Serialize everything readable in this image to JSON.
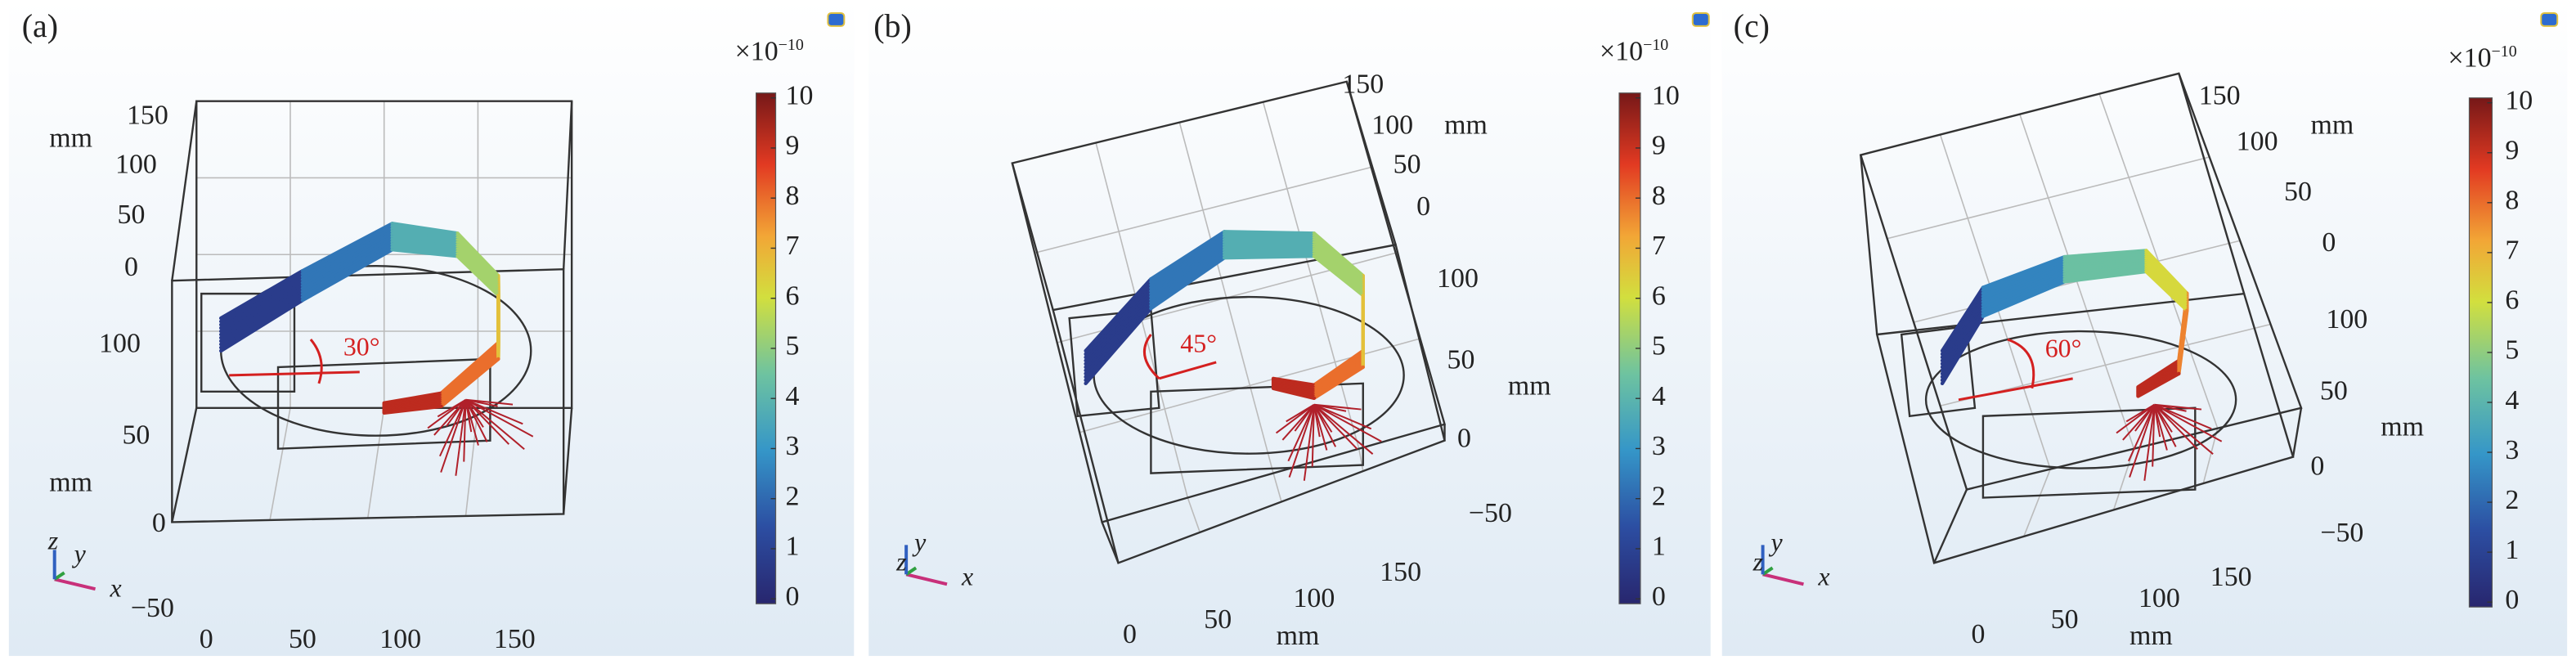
{
  "panels": [
    {
      "label": "(a)",
      "angle": "30°",
      "exponent": "×10",
      "power": "−10",
      "colorbar_ticks": [
        0,
        1,
        2,
        3,
        4,
        5,
        6,
        7,
        8,
        9,
        10
      ],
      "axis_labels": [
        "150",
        "100",
        "50",
        "0",
        "mm",
        "100",
        "50",
        "mm",
        "0",
        "−50",
        "0",
        "50",
        "100",
        "150"
      ],
      "triad": [
        "z",
        "y",
        "x"
      ]
    },
    {
      "label": "(b)",
      "angle": "45°",
      "exponent": "×10",
      "power": "−10",
      "colorbar_ticks": [
        0,
        1,
        2,
        3,
        4,
        5,
        6,
        7,
        8,
        9,
        10
      ],
      "axis_labels": [
        "150",
        "100",
        "50",
        "0",
        "mm",
        "100",
        "50",
        "mm",
        "0",
        "−50",
        "0",
        "50",
        "100",
        "150",
        "mm"
      ],
      "triad": [
        "y",
        "z",
        "x"
      ]
    },
    {
      "label": "(c)",
      "angle": "60°",
      "exponent": "×10",
      "power": "−10",
      "colorbar_ticks": [
        0,
        1,
        2,
        3,
        4,
        5,
        6,
        7,
        8,
        9,
        10
      ],
      "axis_labels": [
        "150",
        "100",
        "50",
        "0",
        "mm",
        "100",
        "50",
        "mm",
        "0",
        "−50",
        "0",
        "50",
        "100",
        "150",
        "mm"
      ],
      "triad": [
        "y",
        "z",
        "x"
      ]
    }
  ]
}
